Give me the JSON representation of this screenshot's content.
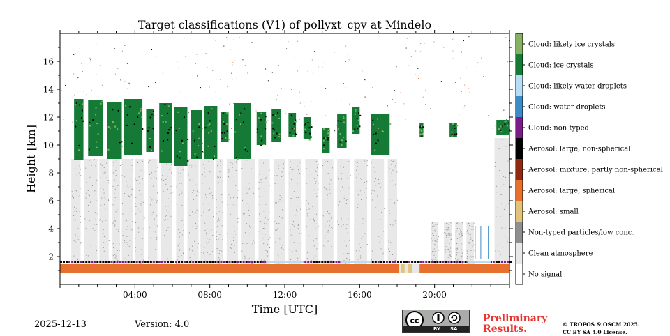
{
  "chart_data": {
    "type": "heatmap",
    "title": "Target classifications (V1) of pollyxt_cpv at Mindelo",
    "xlabel": "Time [UTC]",
    "ylabel": "Height [km]",
    "xlim": [
      0,
      24
    ],
    "ylim": [
      0,
      18
    ],
    "x_ticks": [
      {
        "value": 4,
        "label": "04:00"
      },
      {
        "value": 8,
        "label": "08:00"
      },
      {
        "value": 12,
        "label": "12:00"
      },
      {
        "value": 16,
        "label": "16:00"
      },
      {
        "value": 20,
        "label": "20:00"
      }
    ],
    "y_ticks": [
      {
        "value": 2,
        "label": "2"
      },
      {
        "value": 4,
        "label": "4"
      },
      {
        "value": 6,
        "label": "6"
      },
      {
        "value": 8,
        "label": "8"
      },
      {
        "value": 10,
        "label": "10"
      },
      {
        "value": 12,
        "label": "12"
      },
      {
        "value": 14,
        "label": "14"
      },
      {
        "value": 16,
        "label": "16"
      }
    ],
    "classes": [
      {
        "label": "No signal",
        "color": "#ffffff"
      },
      {
        "label": "Clean atmosphere",
        "color": "#e8e8e8"
      },
      {
        "label": "Non-typed particles/low conc.",
        "color": "#8f8f8f"
      },
      {
        "label": "Aerosol: small",
        "color": "#e2c37a"
      },
      {
        "label": "Aerosol: large, spherical",
        "color": "#e8702f"
      },
      {
        "label": "Aerosol: mixture, partly non-spherical",
        "color": "#8f2a10"
      },
      {
        "label": "Aerosol: large, non-spherical",
        "color": "#000000"
      },
      {
        "label": "Cloud: non-typed",
        "color": "#7b1c8a"
      },
      {
        "label": "Cloud: water droplets",
        "color": "#3d8cc8"
      },
      {
        "label": "Cloud: likely water droplets",
        "color": "#b9dcf5"
      },
      {
        "label": "Cloud: ice crystals",
        "color": "#157a35"
      },
      {
        "label": "Cloud: likely ice crystals",
        "color": "#86b163"
      }
    ],
    "layers": {
      "boundary_layer_top_km": 1.5,
      "boundary_layer_bottom_km": 0.8,
      "ice_cloud_base_km": 9.0,
      "ice_cloud_top_km": 13.3,
      "clean_atmosphere_top_km": 9.0
    }
  },
  "footer": {
    "date": "2025-12-13",
    "version": "Version: 4.0",
    "preliminary_line1": "Preliminary",
    "preliminary_line2": "Results.",
    "copyright_line1": "© TROPOS & OSCM 2025.",
    "copyright_line2": "CC BY SA 4.0 License.",
    "license_by": "BY",
    "license_sa": "SA"
  }
}
